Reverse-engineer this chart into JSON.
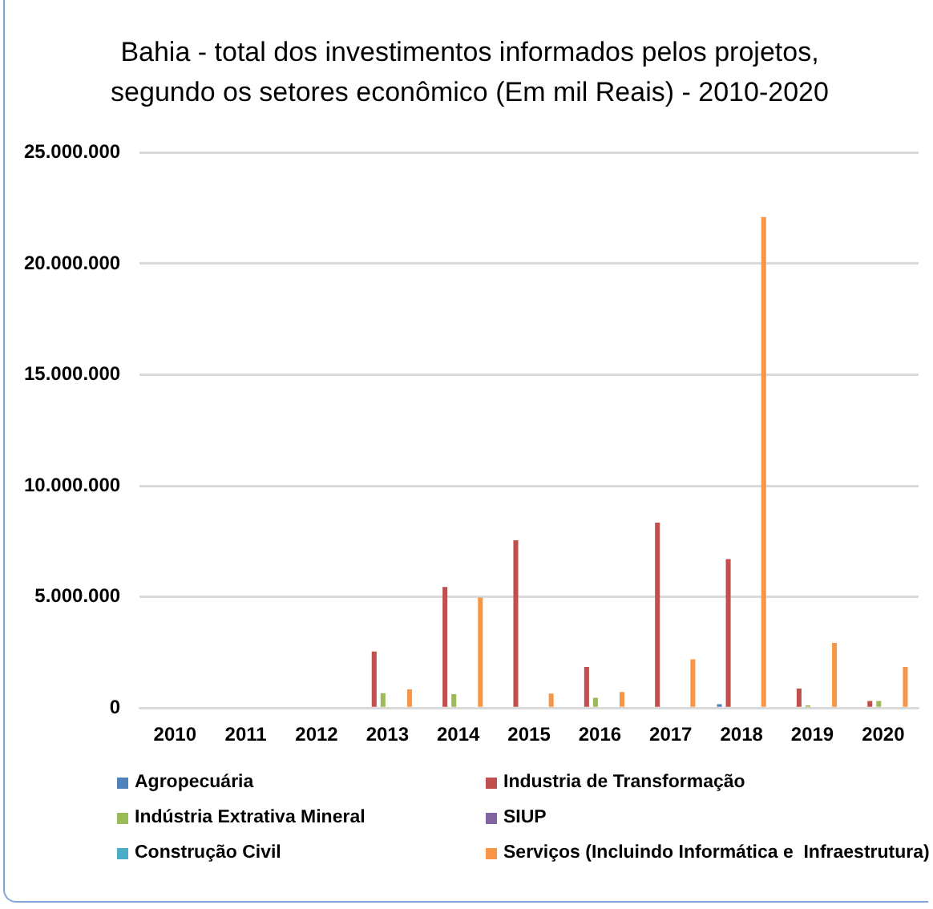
{
  "chart_data": {
    "type": "bar",
    "title": "Bahia - total dos investimentos informados pelos projetos, segundo os setores econômico (Em mil Reais) - 2010-2020",
    "categories": [
      "2010",
      "2011",
      "2012",
      "2013",
      "2014",
      "2015",
      "2016",
      "2017",
      "2018",
      "2019",
      "2020"
    ],
    "series": [
      {
        "name": "Agropecuária",
        "color": "#4f81bd",
        "values": [
          0,
          0,
          0,
          0,
          0,
          0,
          0,
          0,
          170000,
          0,
          0
        ]
      },
      {
        "name": "Industria de Transformação",
        "color": "#c0504d",
        "values": [
          0,
          0,
          0,
          2540000,
          5450000,
          7550000,
          1850000,
          8340000,
          6700000,
          870000,
          310000
        ]
      },
      {
        "name": "Indústria Extrativa Mineral",
        "color": "#9bbb59",
        "values": [
          0,
          0,
          0,
          670000,
          620000,
          0,
          460000,
          0,
          0,
          120000,
          310000
        ]
      },
      {
        "name": "SIUP",
        "color": "#8064a2",
        "values": [
          0,
          0,
          0,
          0,
          0,
          0,
          0,
          0,
          0,
          0,
          0
        ]
      },
      {
        "name": "Construção Civil",
        "color": "#4bacc6",
        "values": [
          0,
          0,
          0,
          0,
          0,
          0,
          0,
          0,
          0,
          0,
          0
        ]
      },
      {
        "name": "Serviços (Incluindo Informática e  Infraestrutura)",
        "color": "#f79646",
        "values": [
          0,
          0,
          0,
          840000,
          4970000,
          650000,
          720000,
          2190000,
          22100000,
          2930000,
          1850000
        ]
      }
    ],
    "ylim": [
      0,
      25000000
    ],
    "yticks": [
      {
        "value": 0,
        "label": "0"
      },
      {
        "value": 5000000,
        "label": "5.000.000"
      },
      {
        "value": 10000000,
        "label": "10.000.000"
      },
      {
        "value": 15000000,
        "label": "15.000.000"
      },
      {
        "value": 20000000,
        "label": "20.000.000"
      },
      {
        "value": 25000000,
        "label": "25.000.000"
      }
    ],
    "grid": "y",
    "legend": "bottom"
  }
}
